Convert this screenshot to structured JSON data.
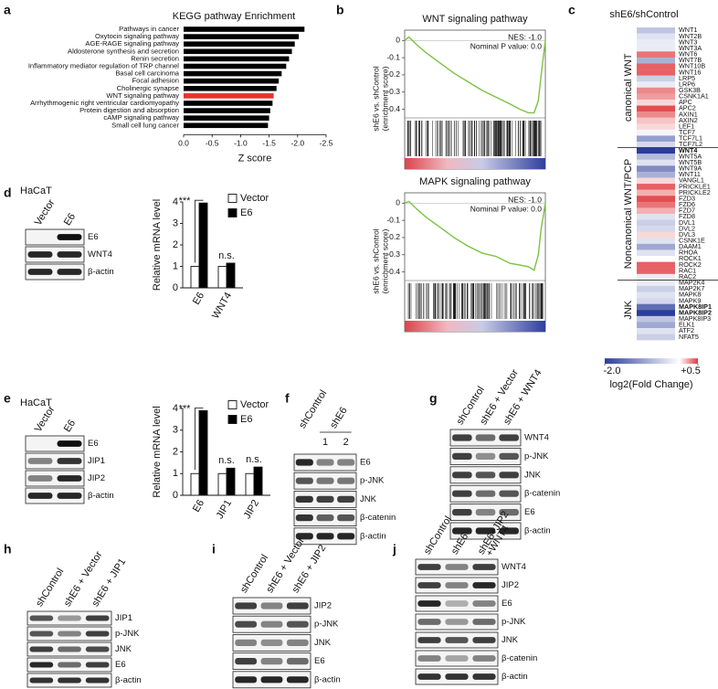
{
  "panel_labels": [
    "a",
    "b",
    "c",
    "d",
    "e",
    "f",
    "g",
    "h",
    "i",
    "j"
  ],
  "chart_data": [
    {
      "type": "hbar",
      "title": "KEGG pathway Enrichment",
      "xlabel": "Z score",
      "categories": [
        "Pathways in cancer",
        "Oxytocin signaling pathway",
        "AGE-RAGE signaling pathway",
        "Aldosterone synthesis and secretion",
        "Renin secretion",
        "Inflammatory mediator regulation of TRP channel",
        "Basal cell carcinoma",
        "Focal adhesion",
        "Cholinergic synapse",
        "WNT signaling pathway",
        "Arrhythmogenic right ventricular cardiomyopathy",
        "Protein digestion and absorption",
        "cAMP signaling pathway",
        "Small cell lung cancer"
      ],
      "values": [
        -2.12,
        -2.02,
        -1.95,
        -1.9,
        -1.85,
        -1.8,
        -1.72,
        -1.67,
        -1.63,
        -1.58,
        -1.56,
        -1.52,
        -1.5,
        -1.48
      ],
      "colors": [
        "#000000",
        "#000000",
        "#000000",
        "#000000",
        "#000000",
        "#000000",
        "#000000",
        "#000000",
        "#000000",
        "#e8322d",
        "#000000",
        "#000000",
        "#000000",
        "#000000"
      ],
      "xlim": [
        0,
        -2.5
      ],
      "xticks": [
        {
          "value": 0,
          "label": "0.0"
        },
        -0.5,
        {
          "value": -1,
          "label": "-1.0"
        },
        -1.5,
        {
          "value": -2,
          "label": "-2.0"
        },
        -2.5
      ]
    },
    {
      "type": "gsea",
      "title": "WNT signaling pathway",
      "ylabel": [
        "shE6 vs. shControl",
        "(enrichment score)"
      ],
      "annotations": [
        "NES: -1.0",
        "Nominal P value: 0.0"
      ],
      "color": "#7cc242",
      "x": [
        0,
        3,
        8,
        15,
        25,
        35,
        45,
        55,
        65,
        75,
        82,
        88,
        92,
        95,
        97,
        100
      ],
      "values": [
        0,
        0.02,
        -0.02,
        -0.07,
        -0.13,
        -0.19,
        -0.24,
        -0.29,
        -0.33,
        -0.37,
        -0.4,
        -0.42,
        -0.42,
        -0.35,
        -0.2,
        0
      ],
      "xlim": [
        0,
        100
      ],
      "ylim": [
        -0.45,
        0.06
      ],
      "yticks": [
        0,
        -0.1,
        -0.2,
        -0.3,
        -0.4
      ]
    },
    {
      "type": "gsea",
      "title": "MAPK signaling pathway",
      "ylabel": [
        "shE6 vs. shControl",
        "(enrichment score)"
      ],
      "annotations": [
        "NES: -1.0",
        "Nominal P value: 0.0"
      ],
      "color": "#7cc242",
      "x": [
        0,
        3,
        8,
        15,
        25,
        35,
        45,
        55,
        65,
        75,
        82,
        88,
        92,
        95,
        97,
        100
      ],
      "values": [
        0,
        0.01,
        -0.03,
        -0.08,
        -0.14,
        -0.2,
        -0.25,
        -0.29,
        -0.31,
        -0.35,
        -0.36,
        -0.37,
        -0.39,
        -0.3,
        -0.15,
        0
      ],
      "xlim": [
        0,
        100
      ],
      "ylim": [
        -0.45,
        0.06
      ],
      "yticks": [
        0,
        -0.1,
        -0.2,
        -0.3,
        -0.4
      ]
    },
    {
      "type": "heatmap",
      "title": "shE6/shControl",
      "colorbar_label": "log2(Fold Change)",
      "clim": [
        -2,
        0.5
      ],
      "cticks": [
        {
          "value": -2,
          "label": "-2.0"
        },
        {
          "value": 0.5,
          "label": "+0.5"
        }
      ],
      "neg_color": "#2b3d9a",
      "mid_color": "#ffffff",
      "pos_color": "#e03a3e",
      "groups": [
        {
          "name": "canonical WNT",
          "bold_indices": [],
          "genes": [
            "WNT1",
            "WNT2B",
            "WNT3",
            "WNT3A",
            "WNT6",
            "WNT7B",
            "WNT10B",
            "WNT16",
            "LRP5",
            "LRP6",
            "GSK3B",
            "CSNK1A1",
            "APC",
            "APC2",
            "AXIN1",
            "AXIN2",
            "LEF1",
            "TCF7",
            "TCF7L1",
            "TCF7L2"
          ],
          "values": [
            -0.6,
            -0.3,
            -0.2,
            -0.2,
            0.35,
            -0.8,
            0.4,
            0.4,
            -0.5,
            -0.2,
            0.3,
            0.25,
            0.1,
            0.45,
            0.3,
            0.15,
            0.1,
            -0.1,
            -1.0,
            -0.4
          ]
        },
        {
          "name": "Noncanonical WNT/PCP",
          "bold_indices": [
            0
          ],
          "genes": [
            "WNT4",
            "WNT5A",
            "WNT5B",
            "WNT9A",
            "WNT11",
            "VANGL1",
            "PRICKLE1",
            "PRICKLE2",
            "FZD3",
            "FZD6",
            "FZD7",
            "FZD8",
            "DVL1",
            "DVL2",
            "DVL3",
            "CSNK1E",
            "DAAM1",
            "RHOA",
            "ROCK1",
            "ROCK2",
            "RAC1",
            "RAC2"
          ],
          "values": [
            -2.0,
            -0.7,
            -0.3,
            -1.2,
            -0.8,
            0.1,
            0.4,
            0.2,
            0.45,
            0.35,
            0.2,
            -0.3,
            -0.5,
            -0.4,
            0.1,
            -0.3,
            -0.9,
            -0.3,
            0,
            0.4,
            0.4,
            -0.2
          ]
        },
        {
          "name": "JNK",
          "bold_indices": [
            4,
            5
          ],
          "genes": [
            "MAP2K4",
            "MAP2K7",
            "MAPK8",
            "MAPK9",
            "MAPK8IP1",
            "MAPK8IP2",
            "MAPK8IP3",
            "ELK1",
            "ATF2",
            "NFAT5"
          ],
          "values": [
            -0.2,
            -0.5,
            -0.3,
            -0.4,
            -1.5,
            -2.0,
            -0.6,
            -0.9,
            -0.3,
            -0.5
          ]
        }
      ]
    },
    {
      "type": "grouped_bar",
      "ylabel": "Relative mRNA level",
      "categories": [
        "E6",
        "WNT4"
      ],
      "series": [
        {
          "name": "Vector",
          "color": "#ffffff",
          "values": [
            1,
            1
          ]
        },
        {
          "name": "E6",
          "color": "#000000",
          "values": [
            3.95,
            1.15
          ]
        }
      ],
      "annotations": [
        "***",
        "n.s."
      ],
      "ylim": [
        0,
        4
      ],
      "yticks": [
        0,
        1,
        2,
        3,
        4
      ]
    },
    {
      "type": "grouped_bar",
      "ylabel": "Relative mRNA level",
      "categories": [
        "E6",
        "JIP1",
        "JIP2"
      ],
      "series": [
        {
          "name": "Vector",
          "color": "#ffffff",
          "values": [
            1,
            1,
            1
          ]
        },
        {
          "name": "E6",
          "color": "#000000",
          "values": [
            3.9,
            1.25,
            1.3
          ]
        }
      ],
      "annotations": [
        "***",
        "n.s.",
        "n.s."
      ],
      "ylim": [
        0,
        4
      ],
      "yticks": [
        0,
        1,
        2,
        3,
        4
      ]
    }
  ],
  "blots": [
    {
      "cell_line": "HaCaT",
      "lanes": [
        "Vector",
        "E6"
      ],
      "bands": [
        {
          "name": "E6",
          "intensity": [
            0,
            1
          ]
        },
        {
          "name": "WNT4",
          "intensity": [
            0.9,
            0.9
          ]
        },
        {
          "name": "β-actin",
          "intensity": [
            0.9,
            0.9
          ]
        }
      ]
    },
    {
      "cell_line": "HaCaT",
      "lanes": [
        "Vector",
        "E6"
      ],
      "bands": [
        {
          "name": "E6",
          "intensity": [
            0,
            1
          ]
        },
        {
          "name": "JIP1",
          "intensity": [
            0.5,
            0.85
          ]
        },
        {
          "name": "JIP2",
          "intensity": [
            0.5,
            0.9
          ]
        },
        {
          "name": "β-actin",
          "intensity": [
            0.9,
            0.9
          ]
        }
      ]
    },
    {
      "lanes": [
        "shControl",
        "shE6"
      ],
      "lane_numbers": [
        "1",
        "2"
      ],
      "bands": [
        {
          "name": "E6",
          "intensity": [
            0.9,
            0.5,
            0.5
          ]
        },
        {
          "name": "p-JNK",
          "intensity": [
            0.7,
            0.55,
            0.55
          ]
        },
        {
          "name": "JNK",
          "intensity": [
            0.85,
            0.8,
            0.8
          ]
        },
        {
          "name": "β-catenin",
          "intensity": [
            0.85,
            0.65,
            0.7
          ]
        },
        {
          "name": "β-actin",
          "intensity": [
            0.9,
            0.9,
            0.9
          ]
        }
      ]
    },
    {
      "lanes": [
        "shControl",
        "shE6 + Vector",
        "shE6 + WNT4"
      ],
      "bands": [
        {
          "name": "WNT4",
          "intensity": [
            0.8,
            0.6,
            0.8
          ]
        },
        {
          "name": "p-JNK",
          "intensity": [
            0.8,
            0.45,
            0.7
          ]
        },
        {
          "name": "JNK",
          "intensity": [
            0.8,
            0.7,
            0.8
          ]
        },
        {
          "name": "β-catenin",
          "intensity": [
            0.8,
            0.6,
            0.7
          ]
        },
        {
          "name": "E6",
          "intensity": [
            0.8,
            0.5,
            0.6
          ]
        },
        {
          "name": "β-actin",
          "intensity": [
            0.9,
            0.9,
            0.9
          ]
        }
      ]
    },
    {
      "lanes": [
        "shControl",
        "shE6 + Vector",
        "shE6 + JIP1"
      ],
      "bands": [
        {
          "name": "JIP1",
          "intensity": [
            0.7,
            0.4,
            0.8
          ]
        },
        {
          "name": "p-JNK",
          "intensity": [
            0.7,
            0.5,
            0.8
          ]
        },
        {
          "name": "JNK",
          "intensity": [
            0.8,
            0.6,
            0.75
          ]
        },
        {
          "name": "E6",
          "intensity": [
            0.9,
            0.6,
            0.8
          ]
        },
        {
          "name": "β-actin",
          "intensity": [
            0.85,
            0.85,
            0.85
          ]
        }
      ]
    },
    {
      "lanes": [
        "shControl",
        "shE6 + Vector",
        "shE6 + JIP2"
      ],
      "bands": [
        {
          "name": "JIP2",
          "intensity": [
            0.8,
            0.5,
            0.8
          ]
        },
        {
          "name": "p-JNK",
          "intensity": [
            0.75,
            0.5,
            0.7
          ]
        },
        {
          "name": "JNK",
          "intensity": [
            0.5,
            0.45,
            0.5
          ]
        },
        {
          "name": "E6",
          "intensity": [
            0.8,
            0.5,
            0.6
          ]
        },
        {
          "name": "β-actin",
          "intensity": [
            0.9,
            0.9,
            0.9
          ]
        }
      ]
    },
    {
      "lanes": [
        "shControl",
        "shE6",
        [
          "shE6+JIP2",
          "+WNT4"
        ]
      ],
      "bands": [
        {
          "name": "WNT4",
          "intensity": [
            0.8,
            0.5,
            0.8
          ]
        },
        {
          "name": "JIP2",
          "intensity": [
            0.8,
            0.5,
            0.9
          ]
        },
        {
          "name": "E6",
          "intensity": [
            0.9,
            0.3,
            0.5
          ]
        },
        {
          "name": "p-JNK",
          "intensity": [
            0.6,
            0.4,
            0.6
          ]
        },
        {
          "name": "JNK",
          "intensity": [
            0.8,
            0.7,
            0.8
          ]
        },
        {
          "name": "β-catenin",
          "intensity": [
            0.5,
            0.35,
            0.5
          ]
        },
        {
          "name": "β-actin",
          "intensity": [
            0.85,
            0.85,
            0.85
          ]
        }
      ]
    }
  ]
}
